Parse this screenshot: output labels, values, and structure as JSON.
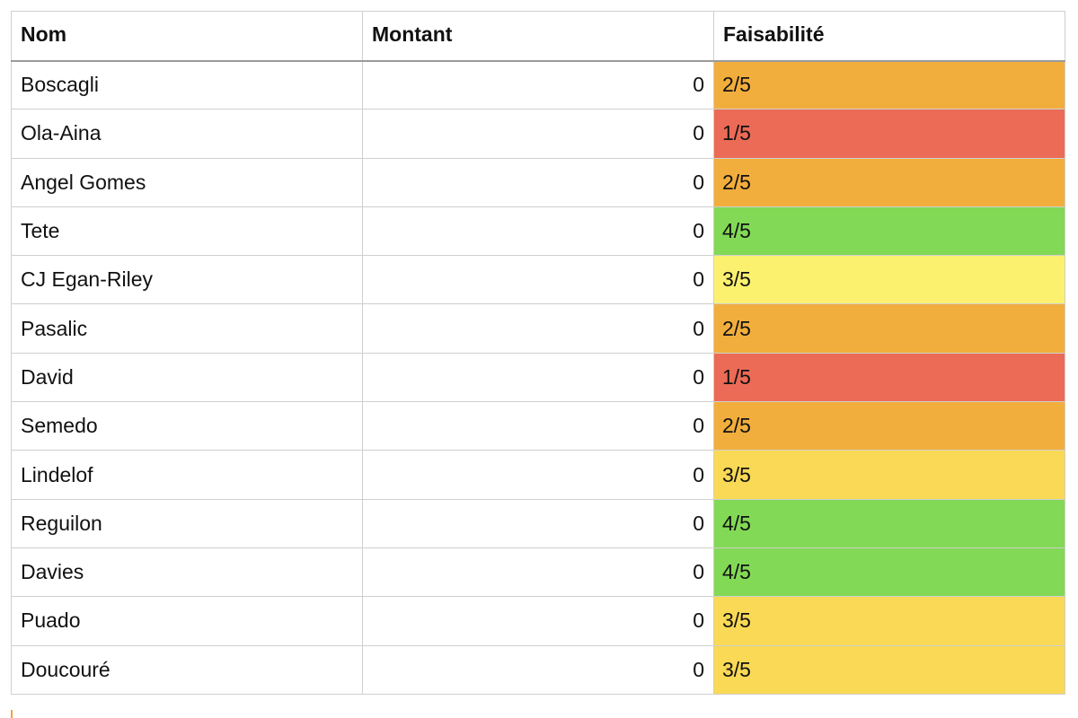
{
  "table": {
    "headers": {
      "name": "Nom",
      "amount": "Montant",
      "feasibility": "Faisabilité"
    },
    "rows": [
      {
        "name": "Boscagli",
        "amount": "0",
        "feasibility": "2/5",
        "color": "#F2AE3C"
      },
      {
        "name": "Ola-Aina",
        "amount": "0",
        "feasibility": "1/5",
        "color": "#EC6B56"
      },
      {
        "name": "Angel Gomes",
        "amount": "0",
        "feasibility": "2/5",
        "color": "#F2AE3C"
      },
      {
        "name": "Tete",
        "amount": "0",
        "feasibility": "4/5",
        "color": "#82D955"
      },
      {
        "name": "CJ Egan-Riley",
        "amount": "0",
        "feasibility": "3/5",
        "color": "#FCF16F"
      },
      {
        "name": "Pasalic",
        "amount": "0",
        "feasibility": "2/5",
        "color": "#F2AE3C"
      },
      {
        "name": "David",
        "amount": "0",
        "feasibility": "1/5",
        "color": "#EC6B56"
      },
      {
        "name": "Semedo",
        "amount": "0",
        "feasibility": "2/5",
        "color": "#F2AE3C"
      },
      {
        "name": "Lindelof",
        "amount": "0",
        "feasibility": "3/5",
        "color": "#F9D955"
      },
      {
        "name": "Reguilon",
        "amount": "0",
        "feasibility": "4/5",
        "color": "#82D955"
      },
      {
        "name": "Davies",
        "amount": "0",
        "feasibility": "4/5",
        "color": "#82D955"
      },
      {
        "name": "Puado",
        "amount": "0",
        "feasibility": "3/5",
        "color": "#F9D955"
      },
      {
        "name": "Doucouré",
        "amount": "0",
        "feasibility": "3/5",
        "color": "#F9D955"
      }
    ]
  }
}
